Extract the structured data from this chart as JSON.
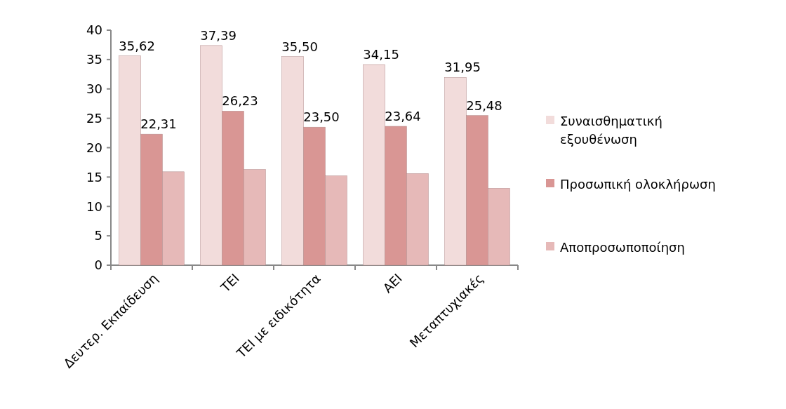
{
  "chart_data": {
    "type": "bar",
    "categories": [
      "Δευτερ. Εκπαίδευση",
      "ΤΕΙ",
      "ΤΕΙ με ειδικότητα",
      "ΑΕΙ",
      "Μεταπτυχιακές"
    ],
    "series": [
      {
        "name": "Συναισθηματική εξουθένωση",
        "color": "#f2dcdb",
        "values": [
          35.62,
          37.39,
          35.5,
          34.15,
          31.95
        ],
        "value_labels": [
          "35,62",
          "37,39",
          "35,50",
          "34,15",
          "31,95"
        ]
      },
      {
        "name": "Προσωπική ολοκλήρωση",
        "color": "#d99694",
        "values": [
          22.31,
          26.23,
          23.5,
          23.64,
          25.48
        ],
        "value_labels": [
          "22,31",
          "26,23",
          "23,50",
          "23,64",
          "25,48"
        ]
      },
      {
        "name": "Αποπροσωποποίηση",
        "color": "#e6b9b8",
        "values": [
          15.9,
          16.3,
          15.2,
          15.6,
          13.1
        ]
      }
    ],
    "ylim": [
      0,
      40
    ],
    "yticks": [
      0,
      5,
      10,
      15,
      20,
      25,
      30,
      35,
      40
    ],
    "grid": false,
    "legend": "right"
  }
}
